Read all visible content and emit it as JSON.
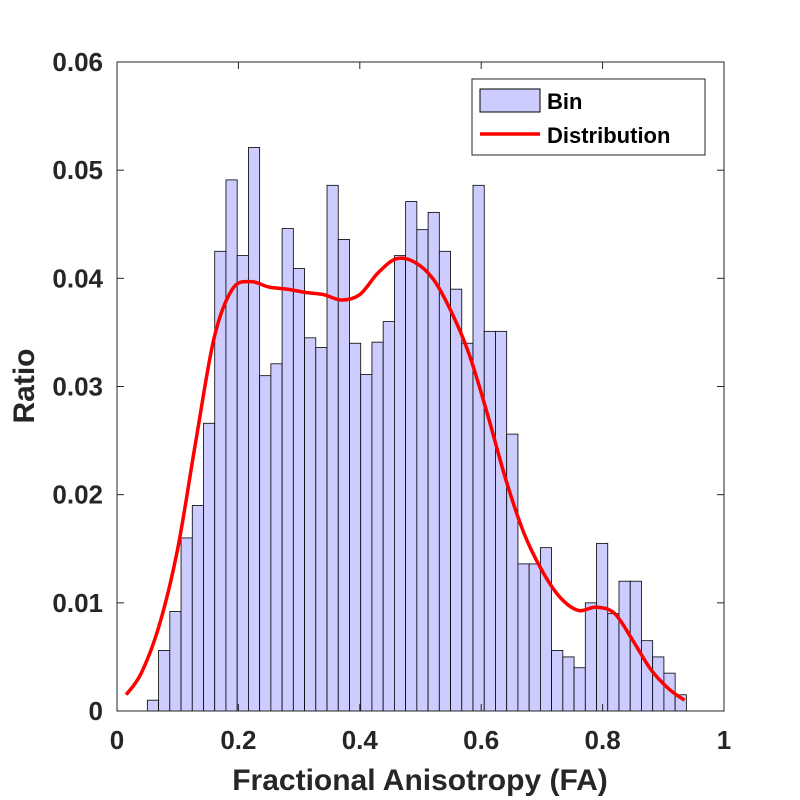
{
  "chart_data": {
    "type": "bar",
    "xlabel": "Fractional Anisotropy (FA)",
    "ylabel": "Ratio",
    "xlim": [
      0,
      1
    ],
    "ylim": [
      0,
      0.06
    ],
    "xticks": [
      0,
      0.2,
      0.4,
      0.6,
      0.8,
      1
    ],
    "xtick_labels": [
      "0",
      "0.2",
      "0.4",
      "0.6",
      "0.8",
      "1"
    ],
    "yticks": [
      0,
      0.01,
      0.02,
      0.03,
      0.04,
      0.05,
      0.06
    ],
    "ytick_labels": [
      "0",
      "0.01",
      "0.02",
      "0.03",
      "0.04",
      "0.05",
      "0.06"
    ],
    "grid": false,
    "legend_position": "top-right",
    "bin_width": 0.0185,
    "bin_start": 0.05,
    "series": [
      {
        "name": "Bin",
        "type": "bar",
        "color": "#ccccff",
        "edge_color": "#000000",
        "values": [
          0.001,
          0.0056,
          0.0092,
          0.016,
          0.019,
          0.0266,
          0.0425,
          0.0491,
          0.0421,
          0.0521,
          0.031,
          0.0321,
          0.0446,
          0.0409,
          0.0345,
          0.0336,
          0.0486,
          0.0436,
          0.034,
          0.0311,
          0.0341,
          0.036,
          0.0421,
          0.0471,
          0.0445,
          0.0461,
          0.0425,
          0.039,
          0.034,
          0.0486,
          0.0351,
          0.0351,
          0.0256,
          0.0136,
          0.0136,
          0.0151,
          0.0056,
          0.005,
          0.004,
          0.01,
          0.0155,
          0.009,
          0.012,
          0.012,
          0.0065,
          0.005,
          0.0035,
          0.0015
        ]
      },
      {
        "name": "Distribution",
        "type": "line",
        "color": "#ff0000",
        "x": [
          0.015,
          0.04,
          0.07,
          0.1,
          0.13,
          0.16,
          0.19,
          0.22,
          0.25,
          0.28,
          0.31,
          0.34,
          0.37,
          0.4,
          0.43,
          0.46,
          0.49,
          0.52,
          0.55,
          0.58,
          0.61,
          0.64,
          0.67,
          0.7,
          0.73,
          0.76,
          0.79,
          0.82,
          0.85,
          0.88,
          0.91,
          0.935
        ],
        "y": [
          0.0015,
          0.0035,
          0.008,
          0.015,
          0.025,
          0.0345,
          0.039,
          0.0397,
          0.0392,
          0.039,
          0.0387,
          0.0385,
          0.038,
          0.0385,
          0.0405,
          0.0418,
          0.0415,
          0.04,
          0.037,
          0.033,
          0.0275,
          0.0215,
          0.0165,
          0.013,
          0.0105,
          0.0093,
          0.0096,
          0.009,
          0.0065,
          0.0038,
          0.002,
          0.001
        ]
      }
    ]
  }
}
